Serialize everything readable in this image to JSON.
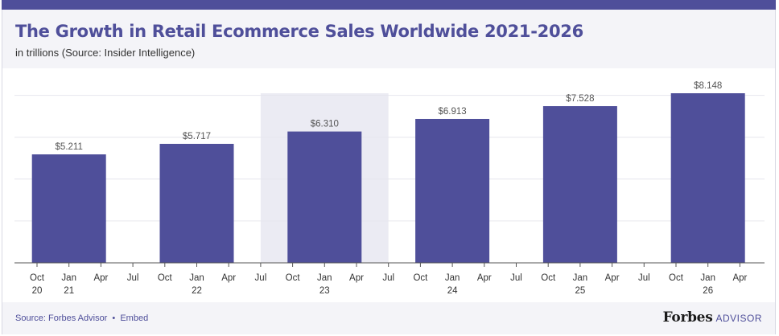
{
  "header": {
    "title": "The Growth in Retail Ecommerce Sales Worldwide 2021-2026",
    "subtitle": "in trillions (Source: Insider Intelligence)"
  },
  "footer": {
    "source_label": "Source:",
    "source_link": "Forbes Advisor",
    "separator": "•",
    "embed_link": "Embed",
    "brand_name": "Forbes",
    "brand_suffix": "ADVISOR"
  },
  "colors": {
    "bar": "#4f4f9a",
    "highlight_band": "#ebebf3",
    "grid": "#e6e6ee",
    "axis": "#555555"
  },
  "chart_data": {
    "type": "bar",
    "categories": [
      "2021",
      "2022",
      "2023",
      "2024",
      "2025",
      "2026"
    ],
    "values": [
      5.211,
      5.717,
      6.31,
      6.913,
      7.528,
      8.148
    ],
    "data_labels": [
      "$5.211",
      "$5.717",
      "$6.310",
      "$6.913",
      "$7.528",
      "$8.148"
    ],
    "ylim": [
      0,
      8.148
    ],
    "y_tick_labels_shown": false,
    "grid": true,
    "highlighted_category": "2023",
    "x_ticks": [
      {
        "label": "Oct",
        "sub": "20"
      },
      {
        "label": "Jan",
        "sub": "21"
      },
      {
        "label": "Apr",
        "sub": ""
      },
      {
        "label": "Jul",
        "sub": ""
      },
      {
        "label": "Oct",
        "sub": ""
      },
      {
        "label": "Jan",
        "sub": "22"
      },
      {
        "label": "Apr",
        "sub": ""
      },
      {
        "label": "Jul",
        "sub": ""
      },
      {
        "label": "Oct",
        "sub": ""
      },
      {
        "label": "Jan",
        "sub": "23"
      },
      {
        "label": "Apr",
        "sub": ""
      },
      {
        "label": "Jul",
        "sub": ""
      },
      {
        "label": "Oct",
        "sub": ""
      },
      {
        "label": "Jan",
        "sub": "24"
      },
      {
        "label": "Apr",
        "sub": ""
      },
      {
        "label": "Jul",
        "sub": ""
      },
      {
        "label": "Oct",
        "sub": ""
      },
      {
        "label": "Jan",
        "sub": "25"
      },
      {
        "label": "Apr",
        "sub": ""
      },
      {
        "label": "Jul",
        "sub": ""
      },
      {
        "label": "Oct",
        "sub": ""
      },
      {
        "label": "Jan",
        "sub": "26"
      },
      {
        "label": "Apr",
        "sub": ""
      }
    ]
  }
}
